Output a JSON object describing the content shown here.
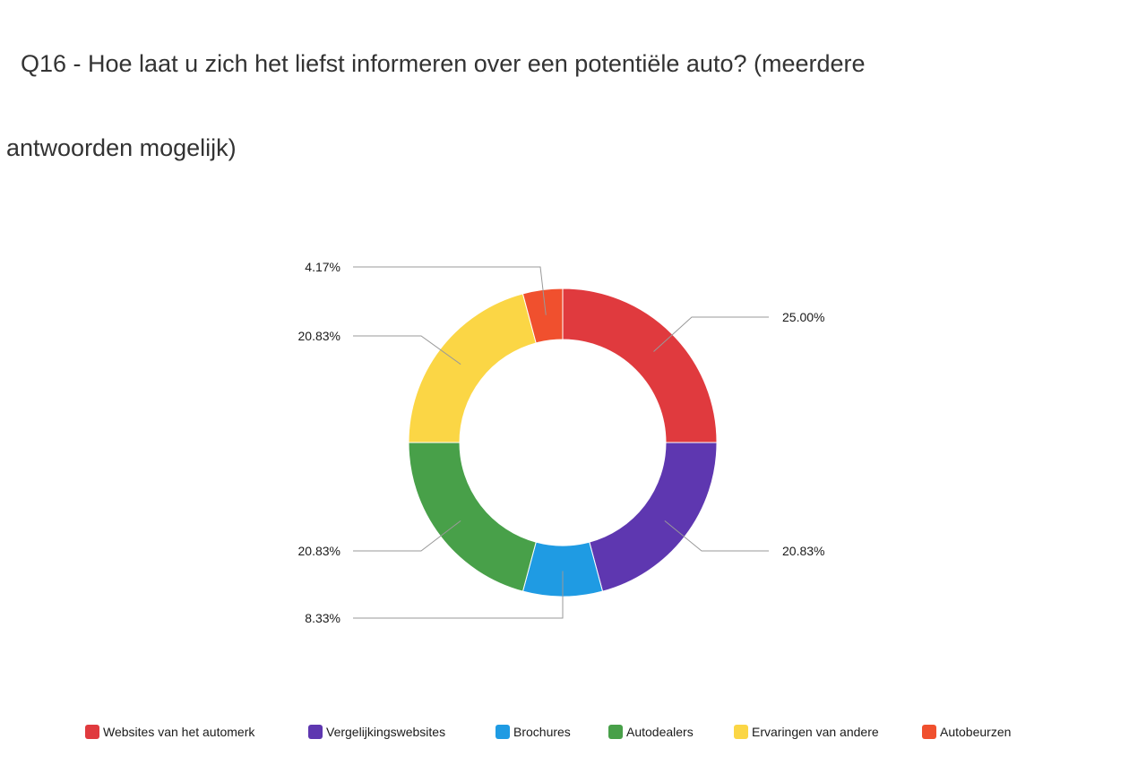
{
  "chart_data": {
    "type": "pie",
    "variant": "donut",
    "title": "Q16 - Hoe laat u zich het liefst informeren over een potentiële auto? (meerdere antwoorden mogelijk)",
    "title_lines": [
      "Q16 - Hoe laat u zich het liefst informeren over een potentiële auto? (meerdere",
      "antwoorden mogelijk)"
    ],
    "legend_position": "bottom",
    "slices": [
      {
        "name": "Websites van het automerk",
        "value": 25.0,
        "label": "25.00%",
        "color": "#e03a3e"
      },
      {
        "name": "Vergelijkingswebsites",
        "value": 20.83,
        "label": "20.83%",
        "color": "#5e37b0"
      },
      {
        "name": "Brochures",
        "value": 8.33,
        "label": "8.33%",
        "color": "#1f9be3"
      },
      {
        "name": "Autodealers",
        "value": 20.83,
        "label": "20.83%",
        "color": "#48a049"
      },
      {
        "name": "Ervaringen van andere",
        "value": 20.83,
        "label": "20.83%",
        "color": "#fbd645"
      },
      {
        "name": "Autobeurzen",
        "value": 4.17,
        "label": "4.17%",
        "color": "#f0502e"
      }
    ]
  }
}
